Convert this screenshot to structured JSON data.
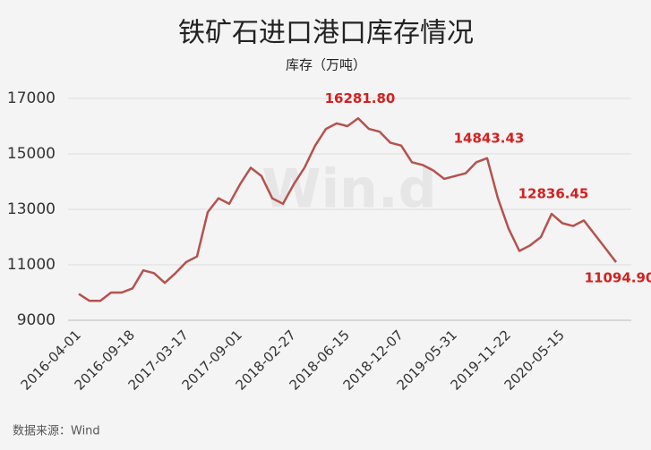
{
  "chart_data": {
    "type": "line",
    "title": "铁矿石进口港口库存情况",
    "y_label": "库存（万吨）",
    "source": "数据来源：Wind",
    "watermark": "Win.d",
    "categories": [
      "2016-04-01",
      null,
      null,
      null,
      null,
      "2016-09-18",
      null,
      null,
      null,
      null,
      "2017-03-17",
      null,
      null,
      null,
      null,
      "2017-09-01",
      null,
      null,
      null,
      null,
      "2018-02-27",
      null,
      null,
      null,
      null,
      "2018-06-15",
      null,
      null,
      null,
      null,
      "2018-12-07",
      null,
      null,
      null,
      null,
      "2019-05-31",
      null,
      null,
      null,
      null,
      "2019-11-22",
      null,
      null,
      null,
      null,
      "2020-05-15",
      null,
      null,
      null,
      null,
      null
    ],
    "series": [
      {
        "name": "库存",
        "color": "#b5524f",
        "values": [
          9950,
          9700,
          9700,
          10000,
          10000,
          10150,
          10800,
          10700,
          10350,
          10700,
          11100,
          11300,
          12900,
          13400,
          13200,
          13900,
          14500,
          14200,
          13400,
          13200,
          13900,
          14500,
          15300,
          15900,
          16100,
          16000,
          16281.8,
          15900,
          15800,
          15400,
          15300,
          14700,
          14600,
          14400,
          14100,
          14200,
          14300,
          14700,
          14843.43,
          13400,
          12300,
          11500,
          11700,
          12000,
          12836.45,
          12500,
          12400,
          12600,
          12100,
          11600,
          11094.9
        ],
        "value_labels": [
          null,
          null,
          null,
          null,
          null,
          null,
          null,
          null,
          null,
          null,
          null,
          null,
          null,
          null,
          null,
          null,
          null,
          null,
          null,
          null,
          null,
          null,
          null,
          null,
          null,
          null,
          "16281.80",
          null,
          null,
          null,
          null,
          null,
          null,
          null,
          null,
          null,
          null,
          null,
          "14843.43",
          null,
          null,
          null,
          null,
          null,
          "12836.45",
          null,
          null,
          null,
          null,
          null,
          "11094.90"
        ]
      }
    ],
    "ylim": [
      9000,
      17000
    ],
    "yticks": [
      9000,
      11000,
      13000,
      15000,
      17000
    ],
    "grid": true
  }
}
